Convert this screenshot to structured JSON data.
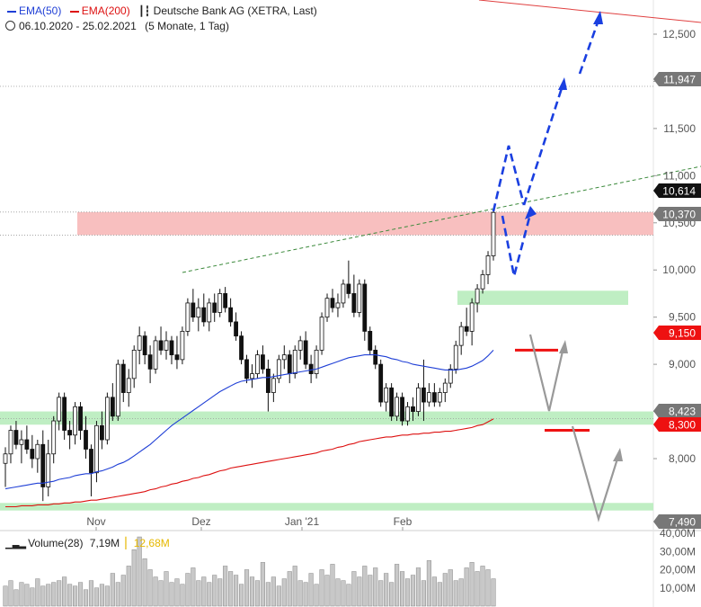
{
  "legend": {
    "ema50": {
      "label": "EMA(50)",
      "color": "#1f3fd6"
    },
    "ema200": {
      "label": "EMA(200)",
      "color": "#dd1111"
    },
    "instrument": "Deutsche Bank AG (XETRA, Last)",
    "chart_icon": "candlestick-icon"
  },
  "info": {
    "date_range": "06.10.2020 - 25.02.2021",
    "period": "(5 Monate, 1 Tag)",
    "clock_icon": "clock-icon"
  },
  "volume_legend": {
    "label": "Volume(28)",
    "value": "7,19M",
    "avg": "12,68M",
    "icon": "bar-chart-icon"
  },
  "chart_data": {
    "type": "candlestick",
    "xlabels": [
      "Nov",
      "Dez",
      "Jan '21",
      "Feb"
    ],
    "y_ticks": [
      "8,000",
      "8,500",
      "9,000",
      "9,500",
      "10,000",
      "10,500",
      "11,000",
      "11,500",
      "12,000",
      "12,500"
    ],
    "ylim": [
      7.4,
      12.7
    ],
    "volume_ticks": [
      "10,00M",
      "20,00M",
      "30,00M",
      "40,00M"
    ],
    "price_labels": [
      {
        "value": "11,947",
        "color": "#777777"
      },
      {
        "value": "10,614",
        "color": "#111111"
      },
      {
        "value": "10,370",
        "color": "#777777"
      },
      {
        "value": "9,150",
        "color": "#ee1111"
      },
      {
        "value": "8,423",
        "color": "#777777"
      },
      {
        "value": "8,300",
        "color": "#ee1111"
      },
      {
        "value": "7,490",
        "color": "#777777"
      }
    ],
    "resistance_zone": [
      10.37,
      10.614
    ],
    "support_zones": [
      [
        9.63,
        9.78
      ],
      [
        8.36,
        8.5
      ],
      [
        7.45,
        7.53
      ]
    ],
    "dotted_levels": [
      11.947,
      10.614,
      10.37,
      8.423
    ],
    "red_levels": [
      9.15,
      8.3
    ],
    "candles_ohlc": [
      [
        7.95,
        8.12,
        7.7,
        8.05
      ],
      [
        8.05,
        8.35,
        7.95,
        8.3
      ],
      [
        8.3,
        8.4,
        8.1,
        8.15
      ],
      [
        8.15,
        8.3,
        7.95,
        8.2
      ],
      [
        8.2,
        8.35,
        8.05,
        8.1
      ],
      [
        8.1,
        8.25,
        7.9,
        8.0
      ],
      [
        8.0,
        8.2,
        7.85,
        8.15
      ],
      [
        8.15,
        8.3,
        7.55,
        7.7
      ],
      [
        7.7,
        8.2,
        7.6,
        8.05
      ],
      [
        8.05,
        8.45,
        7.95,
        8.4
      ],
      [
        8.4,
        8.7,
        8.3,
        8.65
      ],
      [
        8.65,
        8.7,
        8.2,
        8.3
      ],
      [
        8.3,
        8.4,
        8.1,
        8.25
      ],
      [
        8.25,
        8.6,
        8.15,
        8.55
      ],
      [
        8.55,
        8.6,
        8.2,
        8.3
      ],
      [
        8.3,
        8.45,
        8.0,
        8.1
      ],
      [
        8.1,
        8.15,
        7.6,
        7.85
      ],
      [
        7.85,
        8.4,
        7.75,
        8.35
      ],
      [
        8.35,
        8.5,
        8.1,
        8.2
      ],
      [
        8.2,
        8.7,
        8.15,
        8.65
      ],
      [
        8.65,
        8.8,
        8.4,
        8.45
      ],
      [
        8.45,
        9.05,
        8.4,
        9.0
      ],
      [
        9.0,
        9.05,
        8.6,
        8.7
      ],
      [
        8.7,
        8.95,
        8.55,
        8.85
      ],
      [
        8.85,
        9.2,
        8.75,
        9.15
      ],
      [
        9.15,
        9.4,
        9.0,
        9.3
      ],
      [
        9.3,
        9.35,
        9.0,
        9.1
      ],
      [
        9.1,
        9.2,
        8.8,
        8.95
      ],
      [
        8.95,
        9.3,
        8.9,
        9.25
      ],
      [
        9.25,
        9.4,
        9.1,
        9.15
      ],
      [
        9.15,
        9.35,
        9.05,
        9.25
      ],
      [
        9.25,
        9.3,
        9.0,
        9.1
      ],
      [
        9.1,
        9.3,
        8.95,
        9.05
      ],
      [
        9.05,
        9.4,
        9.0,
        9.35
      ],
      [
        9.35,
        9.7,
        9.3,
        9.65
      ],
      [
        9.65,
        9.8,
        9.45,
        9.5
      ],
      [
        9.5,
        9.7,
        9.35,
        9.6
      ],
      [
        9.6,
        9.75,
        9.4,
        9.45
      ],
      [
        9.45,
        9.7,
        9.35,
        9.65
      ],
      [
        9.65,
        9.75,
        9.45,
        9.55
      ],
      [
        9.55,
        9.8,
        9.5,
        9.75
      ],
      [
        9.75,
        9.82,
        9.55,
        9.6
      ],
      [
        9.6,
        9.7,
        9.4,
        9.45
      ],
      [
        9.45,
        9.55,
        9.25,
        9.3
      ],
      [
        9.3,
        9.35,
        9.0,
        9.05
      ],
      [
        9.05,
        9.1,
        8.8,
        8.85
      ],
      [
        8.85,
        9.0,
        8.75,
        8.9
      ],
      [
        8.9,
        9.15,
        8.85,
        9.1
      ],
      [
        9.1,
        9.2,
        8.9,
        8.95
      ],
      [
        8.95,
        9.05,
        8.5,
        8.7
      ],
      [
        8.7,
        8.9,
        8.6,
        8.85
      ],
      [
        8.85,
        9.1,
        8.8,
        9.05
      ],
      [
        9.05,
        9.2,
        8.95,
        9.1
      ],
      [
        9.1,
        9.15,
        8.8,
        8.9
      ],
      [
        8.9,
        9.2,
        8.85,
        9.15
      ],
      [
        9.15,
        9.3,
        9.05,
        9.25
      ],
      [
        9.25,
        9.35,
        8.95,
        9.0
      ],
      [
        9.0,
        9.1,
        8.8,
        8.9
      ],
      [
        8.9,
        9.2,
        8.85,
        9.15
      ],
      [
        9.15,
        9.55,
        9.1,
        9.5
      ],
      [
        9.5,
        9.75,
        9.45,
        9.7
      ],
      [
        9.7,
        9.8,
        9.55,
        9.6
      ],
      [
        9.6,
        9.75,
        9.5,
        9.65
      ],
      [
        9.65,
        9.9,
        9.6,
        9.85
      ],
      [
        9.85,
        10.1,
        9.7,
        9.75
      ],
      [
        9.75,
        9.95,
        9.5,
        9.55
      ],
      [
        9.55,
        9.9,
        9.5,
        9.85
      ],
      [
        9.85,
        9.9,
        9.25,
        9.35
      ],
      [
        9.35,
        9.4,
        9.1,
        9.15
      ],
      [
        9.15,
        9.2,
        8.95,
        9.0
      ],
      [
        9.0,
        9.05,
        8.55,
        8.6
      ],
      [
        8.6,
        8.8,
        8.5,
        8.75
      ],
      [
        8.75,
        8.8,
        8.4,
        8.45
      ],
      [
        8.45,
        8.7,
        8.4,
        8.65
      ],
      [
        8.65,
        8.7,
        8.35,
        8.4
      ],
      [
        8.4,
        8.6,
        8.35,
        8.55
      ],
      [
        8.55,
        8.65,
        8.4,
        8.5
      ],
      [
        8.5,
        8.8,
        8.45,
        8.75
      ],
      [
        8.75,
        9.05,
        8.4,
        8.6
      ],
      [
        8.6,
        8.8,
        8.55,
        8.7
      ],
      [
        8.7,
        8.8,
        8.55,
        8.6
      ],
      [
        8.6,
        8.75,
        8.55,
        8.7
      ],
      [
        8.7,
        8.85,
        8.6,
        8.8
      ],
      [
        8.8,
        9.0,
        8.75,
        8.95
      ],
      [
        8.95,
        9.25,
        8.9,
        9.2
      ],
      [
        9.2,
        9.45,
        9.1,
        9.4
      ],
      [
        9.4,
        9.6,
        9.3,
        9.35
      ],
      [
        9.35,
        9.7,
        9.2,
        9.65
      ],
      [
        9.65,
        9.85,
        9.55,
        9.8
      ],
      [
        9.8,
        10.0,
        9.75,
        9.95
      ],
      [
        9.95,
        10.2,
        9.85,
        10.15
      ],
      [
        10.15,
        10.65,
        10.1,
        10.61
      ]
    ],
    "ema50": [
      7.68,
      7.69,
      7.7,
      7.71,
      7.72,
      7.73,
      7.74,
      7.74,
      7.75,
      7.76,
      7.78,
      7.79,
      7.8,
      7.82,
      7.83,
      7.84,
      7.84,
      7.86,
      7.87,
      7.89,
      7.91,
      7.94,
      7.96,
      7.99,
      8.03,
      8.07,
      8.11,
      8.15,
      8.2,
      8.25,
      8.3,
      8.35,
      8.39,
      8.43,
      8.47,
      8.51,
      8.55,
      8.59,
      8.63,
      8.67,
      8.71,
      8.74,
      8.77,
      8.8,
      8.82,
      8.83,
      8.84,
      8.85,
      8.86,
      8.86,
      8.87,
      8.88,
      8.89,
      8.9,
      8.91,
      8.92,
      8.93,
      8.94,
      8.95,
      8.97,
      8.99,
      9.01,
      9.03,
      9.05,
      9.07,
      9.08,
      9.09,
      9.1,
      9.1,
      9.1,
      9.09,
      9.08,
      9.06,
      9.05,
      9.03,
      9.02,
      9.0,
      8.99,
      8.98,
      8.97,
      8.96,
      8.95,
      8.94,
      8.94,
      8.94,
      8.95,
      8.96,
      8.98,
      9.01,
      9.04,
      9.09,
      9.15
    ],
    "ema200": [
      7.49,
      7.49,
      7.49,
      7.5,
      7.5,
      7.5,
      7.51,
      7.51,
      7.51,
      7.52,
      7.52,
      7.53,
      7.53,
      7.54,
      7.54,
      7.55,
      7.56,
      7.56,
      7.57,
      7.58,
      7.59,
      7.6,
      7.61,
      7.62,
      7.63,
      7.64,
      7.65,
      7.67,
      7.68,
      7.7,
      7.71,
      7.73,
      7.74,
      7.76,
      7.77,
      7.79,
      7.8,
      7.82,
      7.83,
      7.85,
      7.87,
      7.88,
      7.9,
      7.91,
      7.92,
      7.93,
      7.94,
      7.95,
      7.96,
      7.97,
      7.98,
      7.99,
      8.0,
      8.01,
      8.02,
      8.03,
      8.04,
      8.05,
      8.06,
      8.08,
      8.09,
      8.1,
      8.12,
      8.13,
      8.15,
      8.16,
      8.18,
      8.19,
      8.2,
      8.21,
      8.22,
      8.23,
      8.23,
      8.24,
      8.25,
      8.25,
      8.26,
      8.26,
      8.27,
      8.27,
      8.28,
      8.28,
      8.29,
      8.29,
      8.3,
      8.31,
      8.32,
      8.33,
      8.35,
      8.36,
      8.39,
      8.42
    ],
    "volumes_m": [
      11,
      14,
      9,
      13,
      12,
      10,
      15,
      11,
      12,
      13,
      14,
      16,
      12,
      11,
      13,
      9,
      14,
      10,
      12,
      11,
      18,
      13,
      17,
      22,
      31,
      38,
      26,
      20,
      16,
      14,
      19,
      13,
      15,
      12,
      18,
      21,
      14,
      16,
      13,
      17,
      15,
      22,
      19,
      17,
      12,
      20,
      16,
      14,
      24,
      13,
      16,
      11,
      15,
      19,
      22,
      14,
      13,
      18,
      12,
      20,
      17,
      23,
      15,
      14,
      12,
      19,
      16,
      22,
      17,
      21,
      14,
      18,
      13,
      23,
      19,
      15,
      17,
      21,
      14,
      25,
      16,
      13,
      18,
      20,
      14,
      15,
      21,
      24,
      19,
      22,
      20,
      15
    ]
  }
}
